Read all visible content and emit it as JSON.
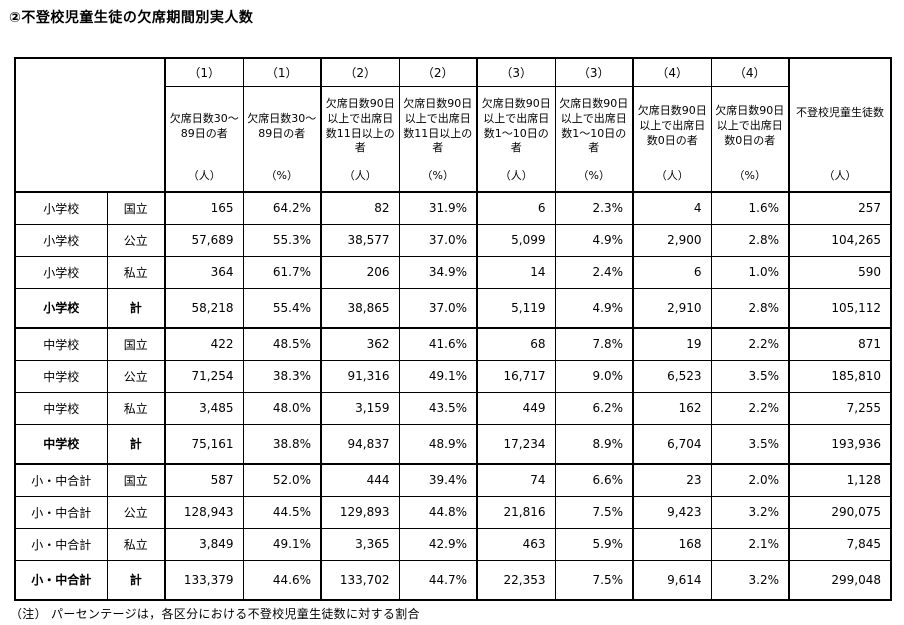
{
  "title": "②不登校児童生徒の欠席期間別実人数",
  "footnote": "（注） パーセンテージは，各区分における不登校児童生徒数に対する割合",
  "table": {
    "columns": [
      {
        "number": "（1）",
        "description": "欠席日数30～89日の者",
        "unit": "（人）"
      },
      {
        "number": "（1）",
        "description": "欠席日数30～89日の者",
        "unit": "（%）"
      },
      {
        "number": "（2）",
        "description": "欠席日数90日以上で出席日数11日以上の者",
        "unit": "（人）"
      },
      {
        "number": "（2）",
        "description": "欠席日数90日以上で出席日数11日以上の者",
        "unit": "（%）"
      },
      {
        "number": "（3）",
        "description": "欠席日数90日以上で出席日数1～10日の者",
        "unit": "（人）"
      },
      {
        "number": "（3）",
        "description": "欠席日数90日以上で出席日数1～10日の者",
        "unit": "（%）"
      },
      {
        "number": "（4）",
        "description": "欠席日数90日以上で出席日数0日の者",
        "unit": "（人）"
      },
      {
        "number": "（4）",
        "description": "欠席日数90日以上で出席日数0日の者",
        "unit": "（%）"
      }
    ],
    "total_column": {
      "description": "不登校児童生徒数",
      "unit": "（人）"
    },
    "rows": [
      {
        "school": "小学校",
        "type": "国立",
        "bold": false,
        "values": [
          "165",
          "64.2%",
          "82",
          "31.9%",
          "6",
          "2.3%",
          "4",
          "1.6%",
          "257"
        ]
      },
      {
        "school": "小学校",
        "type": "公立",
        "bold": false,
        "values": [
          "57,689",
          "55.3%",
          "38,577",
          "37.0%",
          "5,099",
          "4.9%",
          "2,900",
          "2.8%",
          "104,265"
        ]
      },
      {
        "school": "小学校",
        "type": "私立",
        "bold": false,
        "values": [
          "364",
          "61.7%",
          "206",
          "34.9%",
          "14",
          "2.4%",
          "6",
          "1.0%",
          "590"
        ]
      },
      {
        "school": "小学校",
        "type": "計",
        "bold": true,
        "values": [
          "58,218",
          "55.4%",
          "38,865",
          "37.0%",
          "5,119",
          "4.9%",
          "2,910",
          "2.8%",
          "105,112"
        ]
      },
      {
        "school": "中学校",
        "type": "国立",
        "bold": false,
        "values": [
          "422",
          "48.5%",
          "362",
          "41.6%",
          "68",
          "7.8%",
          "19",
          "2.2%",
          "871"
        ]
      },
      {
        "school": "中学校",
        "type": "公立",
        "bold": false,
        "values": [
          "71,254",
          "38.3%",
          "91,316",
          "49.1%",
          "16,717",
          "9.0%",
          "6,523",
          "3.5%",
          "185,810"
        ]
      },
      {
        "school": "中学校",
        "type": "私立",
        "bold": false,
        "values": [
          "3,485",
          "48.0%",
          "3,159",
          "43.5%",
          "449",
          "6.2%",
          "162",
          "2.2%",
          "7,255"
        ]
      },
      {
        "school": "中学校",
        "type": "計",
        "bold": true,
        "values": [
          "75,161",
          "38.8%",
          "94,837",
          "48.9%",
          "17,234",
          "8.9%",
          "6,704",
          "3.5%",
          "193,936"
        ]
      },
      {
        "school": "小・中合計",
        "type": "国立",
        "bold": false,
        "values": [
          "587",
          "52.0%",
          "444",
          "39.4%",
          "74",
          "6.6%",
          "23",
          "2.0%",
          "1,128"
        ]
      },
      {
        "school": "小・中合計",
        "type": "公立",
        "bold": false,
        "values": [
          "128,943",
          "44.5%",
          "129,893",
          "44.8%",
          "21,816",
          "7.5%",
          "9,423",
          "3.2%",
          "290,075"
        ]
      },
      {
        "school": "小・中合計",
        "type": "私立",
        "bold": false,
        "values": [
          "3,849",
          "49.1%",
          "3,365",
          "42.9%",
          "463",
          "5.9%",
          "168",
          "2.1%",
          "7,845"
        ]
      },
      {
        "school": "小・中合計",
        "type": "計",
        "bold": true,
        "values": [
          "133,379",
          "44.6%",
          "133,702",
          "44.7%",
          "22,353",
          "7.5%",
          "9,614",
          "3.2%",
          "299,048"
        ]
      }
    ]
  }
}
